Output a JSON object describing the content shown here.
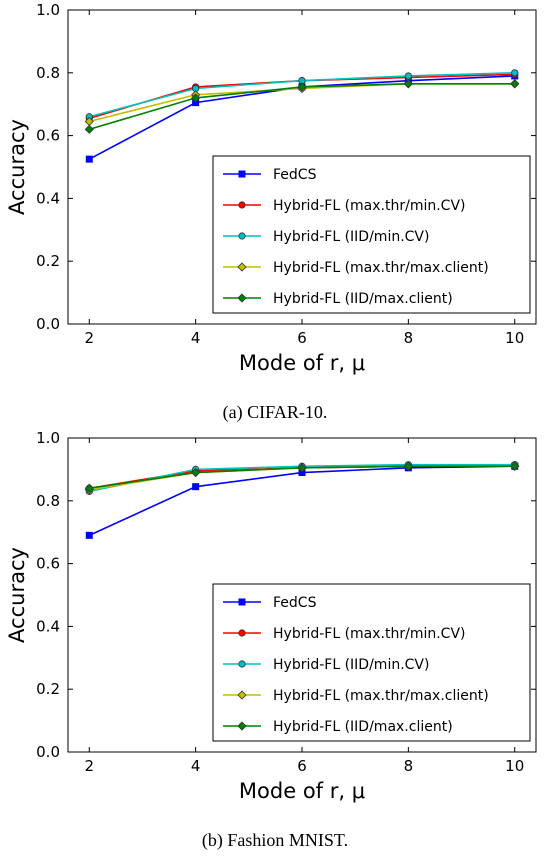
{
  "colors": {
    "FedCS": "#0000ff",
    "Hybrid-FL (max.thr/min.CV)": "#ff0000",
    "Hybrid-FL (IID/min.CV)": "#00bfbf",
    "Hybrid-FL (max.thr/max.client)": "#bfbf00",
    "Hybrid-FL (IID/max.client)": "#008000"
  },
  "chart_data": [
    {
      "type": "line",
      "caption": "(a) CIFAR-10.",
      "xlabel": "Mode of r, μ",
      "ylabel": "Accuracy",
      "x": [
        2,
        4,
        6,
        8,
        10
      ],
      "xticks": [
        "2",
        "4",
        "6",
        "8",
        "10"
      ],
      "xlim": [
        1.6,
        10.4
      ],
      "ylim": [
        0,
        1
      ],
      "yticks": [
        "0.0",
        "0.2",
        "0.4",
        "0.6",
        "0.8",
        "1.0"
      ],
      "grid": false,
      "legend_position": "bottom-right",
      "series": [
        {
          "name": "FedCS",
          "marker": "square",
          "values": [
            0.525,
            0.705,
            0.755,
            0.775,
            0.79
          ]
        },
        {
          "name": "Hybrid-FL (max.thr/min.CV)",
          "marker": "circle",
          "values": [
            0.655,
            0.755,
            0.775,
            0.785,
            0.795
          ]
        },
        {
          "name": "Hybrid-FL (IID/min.CV)",
          "marker": "circle",
          "values": [
            0.66,
            0.75,
            0.775,
            0.79,
            0.8
          ]
        },
        {
          "name": "Hybrid-FL (max.thr/max.client)",
          "marker": "diamond",
          "values": [
            0.645,
            0.73,
            0.75,
            0.765,
            0.765
          ]
        },
        {
          "name": "Hybrid-FL (IID/max.client)",
          "marker": "diamond",
          "values": [
            0.62,
            0.72,
            0.755,
            0.765,
            0.765
          ]
        }
      ]
    },
    {
      "type": "line",
      "caption": "(b) Fashion MNIST.",
      "xlabel": "Mode of r, μ",
      "ylabel": "Accuracy",
      "x": [
        2,
        4,
        6,
        8,
        10
      ],
      "xticks": [
        "2",
        "4",
        "6",
        "8",
        "10"
      ],
      "xlim": [
        1.6,
        10.4
      ],
      "ylim": [
        0,
        1
      ],
      "yticks": [
        "0.0",
        "0.2",
        "0.4",
        "0.6",
        "0.8",
        "1.0"
      ],
      "grid": false,
      "legend_position": "bottom-right",
      "series": [
        {
          "name": "FedCS",
          "marker": "square",
          "values": [
            0.69,
            0.845,
            0.89,
            0.905,
            0.91
          ]
        },
        {
          "name": "Hybrid-FL (max.thr/min.CV)",
          "marker": "circle",
          "values": [
            0.84,
            0.895,
            0.905,
            0.91,
            0.915
          ]
        },
        {
          "name": "Hybrid-FL (IID/min.CV)",
          "marker": "circle",
          "values": [
            0.83,
            0.9,
            0.91,
            0.915,
            0.915
          ]
        },
        {
          "name": "Hybrid-FL (max.thr/max.client)",
          "marker": "diamond",
          "values": [
            0.835,
            0.89,
            0.905,
            0.91,
            0.91
          ]
        },
        {
          "name": "Hybrid-FL (IID/max.client)",
          "marker": "diamond",
          "values": [
            0.84,
            0.89,
            0.905,
            0.91,
            0.91
          ]
        }
      ]
    }
  ]
}
